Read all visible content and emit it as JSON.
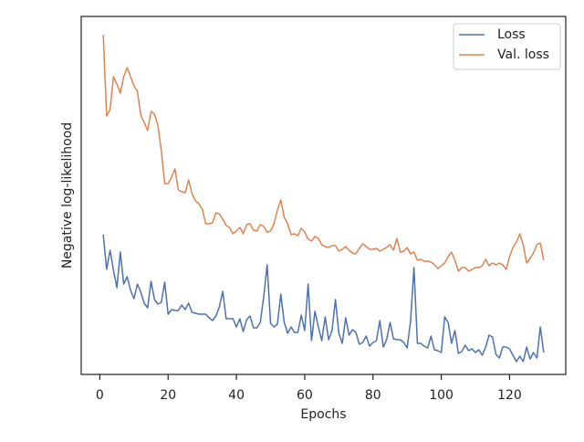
{
  "chart_data": {
    "type": "line",
    "xlabel": "Epochs",
    "ylabel": "Negative log-likelihood",
    "x": [
      1,
      2,
      3,
      4,
      5,
      6,
      7,
      8,
      9,
      10,
      11,
      12,
      13,
      14,
      15,
      16,
      17,
      18,
      19,
      20,
      21,
      22,
      23,
      24,
      25,
      26,
      27,
      28,
      29,
      30,
      31,
      32,
      33,
      34,
      35,
      36,
      37,
      38,
      39,
      40,
      41,
      42,
      43,
      44,
      45,
      46,
      47,
      48,
      49,
      50,
      51,
      52,
      53,
      54,
      55,
      56,
      57,
      58,
      59,
      60,
      61,
      62,
      63,
      64,
      65,
      66,
      67,
      68,
      69,
      70,
      71,
      72,
      73,
      74,
      75,
      76,
      77,
      78,
      79,
      80,
      81,
      82,
      83,
      84,
      85,
      86,
      87,
      88,
      89,
      90,
      91,
      92,
      93,
      94,
      95,
      96,
      97,
      98,
      99,
      100,
      101,
      102,
      103,
      104,
      105,
      106,
      107,
      108,
      109,
      110,
      111,
      112,
      113,
      114,
      115,
      116,
      117,
      118,
      119,
      120,
      121,
      122,
      123,
      124,
      125,
      126,
      127,
      128,
      129,
      130
    ],
    "series": [
      {
        "name": "Loss",
        "color": "#4c72b0",
        "values": [
          153,
          115,
          136,
          114,
          95,
          134,
          99,
          107,
          92,
          83,
          99,
          90,
          78,
          73,
          102,
          82,
          77,
          79,
          101,
          66,
          71,
          70,
          70,
          76,
          71,
          78,
          68,
          67,
          66,
          66,
          66,
          62,
          59,
          64,
          74,
          91,
          61,
          61,
          61,
          52,
          61,
          47,
          60,
          64,
          51,
          51,
          57,
          85,
          120,
          56,
          52,
          55,
          88,
          57,
          45,
          52,
          46,
          46,
          65,
          48,
          99,
          37,
          69,
          52,
          37,
          63,
          38,
          48,
          82,
          45,
          34,
          62,
          43,
          49,
          46,
          33,
          35,
          42,
          31,
          35,
          37,
          59,
          30,
          38,
          57,
          39,
          38,
          38,
          35,
          29,
          58,
          117,
          34,
          34,
          31,
          29,
          42,
          27,
          26,
          24,
          63,
          57,
          34,
          48,
          23,
          25,
          32,
          26,
          28,
          24,
          27,
          21,
          30,
          43,
          41,
          22,
          18,
          30,
          30,
          28,
          21,
          14,
          20,
          14,
          30,
          17,
          24,
          18,
          52,
          24
        ]
      },
      {
        "name": "Val. loss",
        "color": "#dd8452",
        "values": [
          372,
          283,
          290,
          326,
          318,
          308,
          326,
          336,
          326,
          316,
          310,
          284,
          276,
          267,
          288,
          285,
          273,
          245,
          209,
          209,
          216,
          225,
          202,
          200,
          199,
          213,
          198,
          190,
          187,
          181,
          165,
          165,
          166,
          177,
          176,
          170,
          163,
          161,
          154,
          157,
          161,
          154,
          164,
          165,
          158,
          157,
          164,
          162,
          156,
          157,
          165,
          180,
          191,
          172,
          165,
          153,
          154,
          152,
          160,
          156,
          148,
          146,
          151,
          149,
          142,
          140,
          139,
          141,
          141,
          135,
          137,
          140,
          136,
          133,
          132,
          138,
          143,
          140,
          137,
          137,
          138,
          135,
          137,
          139,
          142,
          136,
          149,
          134,
          135,
          139,
          132,
          134,
          125,
          126,
          124,
          124,
          123,
          120,
          116,
          119,
          122,
          129,
          134,
          125,
          113,
          117,
          117,
          113,
          115,
          117,
          117,
          119,
          126,
          119,
          122,
          120,
          122,
          120,
          115,
          129,
          139,
          145,
          154,
          142,
          122,
          127,
          133,
          142,
          144,
          125
        ]
      }
    ],
    "xlim": [
      -5.45,
      136.45
    ],
    "xticks": [
      0,
      20,
      40,
      60,
      80,
      100,
      120
    ],
    "ylim": [
      0,
      392
    ],
    "legend": "upper right"
  }
}
